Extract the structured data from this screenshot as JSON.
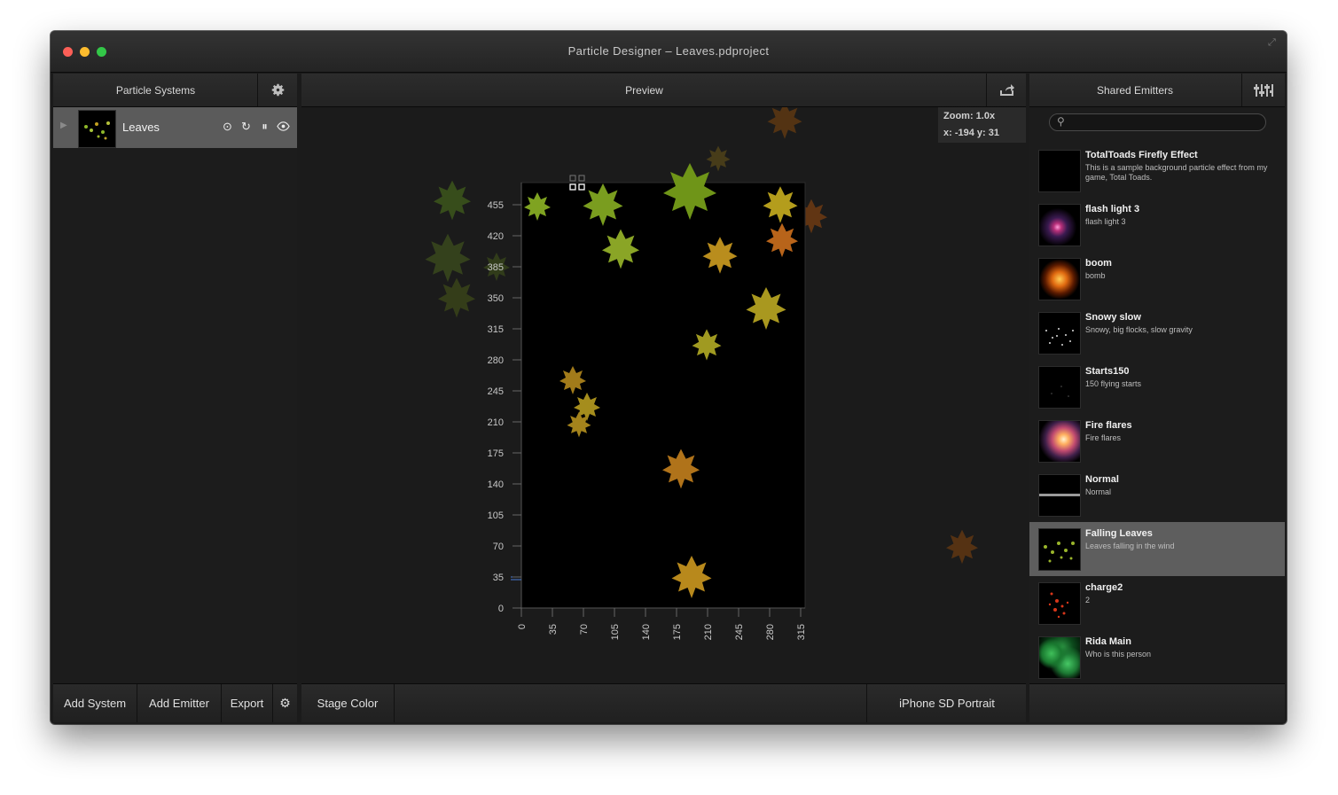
{
  "window": {
    "title": "Particle Designer – Leaves.pdproject"
  },
  "left_panel": {
    "title": "Particle Systems",
    "settings_icon": "gear-icon",
    "systems": [
      {
        "name": "Leaves"
      }
    ],
    "footer": {
      "add_system": "Add System",
      "add_emitter": "Add Emitter",
      "export": "Export"
    }
  },
  "preview": {
    "title": "Preview",
    "share_icon": "share-icon",
    "zoom": "Zoom: 1.0x",
    "coords": "x: -194 y: 31",
    "footer": {
      "stage_color": "Stage Color",
      "device": "iPhone SD Portrait"
    },
    "y_ticks": [
      "0",
      "35",
      "70",
      "105",
      "140",
      "175",
      "210",
      "245",
      "280",
      "315",
      "350",
      "385",
      "420",
      "455"
    ],
    "x_ticks": [
      "0",
      "35",
      "70",
      "105",
      "140",
      "175",
      "210",
      "245",
      "280",
      "315"
    ]
  },
  "right_panel": {
    "title": "Shared Emitters",
    "filter_icon": "sliders-icon",
    "search": {
      "value": "",
      "placeholder": ""
    },
    "emitters": [
      {
        "name": "TotalToads Firefly Effect",
        "description": "This is a sample background particle effect from my game, Total Toads."
      },
      {
        "name": "flash light 3",
        "description": "flash light 3"
      },
      {
        "name": "boom",
        "description": "bomb"
      },
      {
        "name": "Snowy slow",
        "description": "Snowy, big flocks, slow gravity"
      },
      {
        "name": "Starts150",
        "description": "150 flying starts"
      },
      {
        "name": "Fire flares",
        "description": "Fire flares"
      },
      {
        "name": "Normal",
        "description": "Normal"
      },
      {
        "name": "Falling Leaves",
        "description": "Leaves falling in the wind"
      },
      {
        "name": "charge2",
        "description": "2"
      },
      {
        "name": "Rida Main",
        "description": "Who is this person"
      }
    ]
  }
}
